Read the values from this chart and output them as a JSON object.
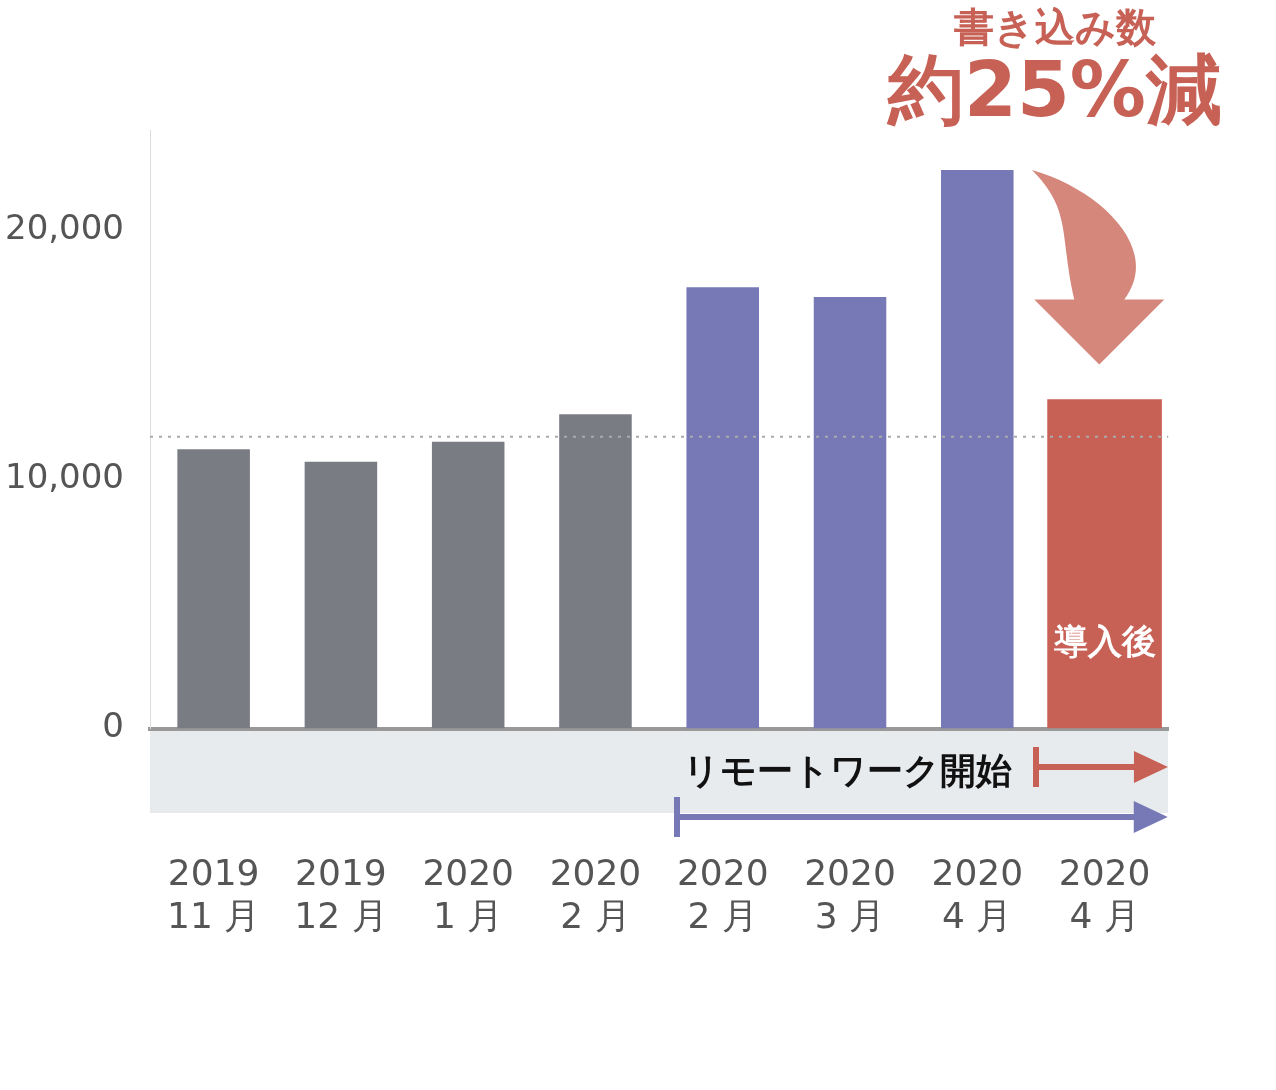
{
  "chart_data": {
    "type": "bar",
    "categories": [
      "2019\n11 月",
      "2019\n12 月",
      "2020\n1 月",
      "2020\n2 月",
      "2020\n2 月",
      "2020\n3 月",
      "2020\n4 月",
      "2020\n4 月"
    ],
    "values": [
      11200,
      10700,
      11500,
      12600,
      17700,
      17300,
      22400,
      13200
    ],
    "colors": [
      "#7a7c84",
      "#7a7c84",
      "#7a7c84",
      "#7a7c84",
      "#7779b7",
      "#7779b7",
      "#7779b7",
      "#c86155"
    ],
    "ylim": [
      0,
      24000
    ],
    "yticks": [
      0,
      {
        "value": 10000,
        "label": "10,000"
      },
      {
        "value": 20000,
        "label": "20,000"
      }
    ],
    "grid": false,
    "legend": false,
    "ref_lines": [
      {
        "axis": "y",
        "value": 11700,
        "color": "#aaaaaa",
        "line_style": "dotted"
      }
    ],
    "annotations": [
      "書き込み数",
      "約25%減",
      "リモートワーク開始",
      "導入後"
    ]
  }
}
